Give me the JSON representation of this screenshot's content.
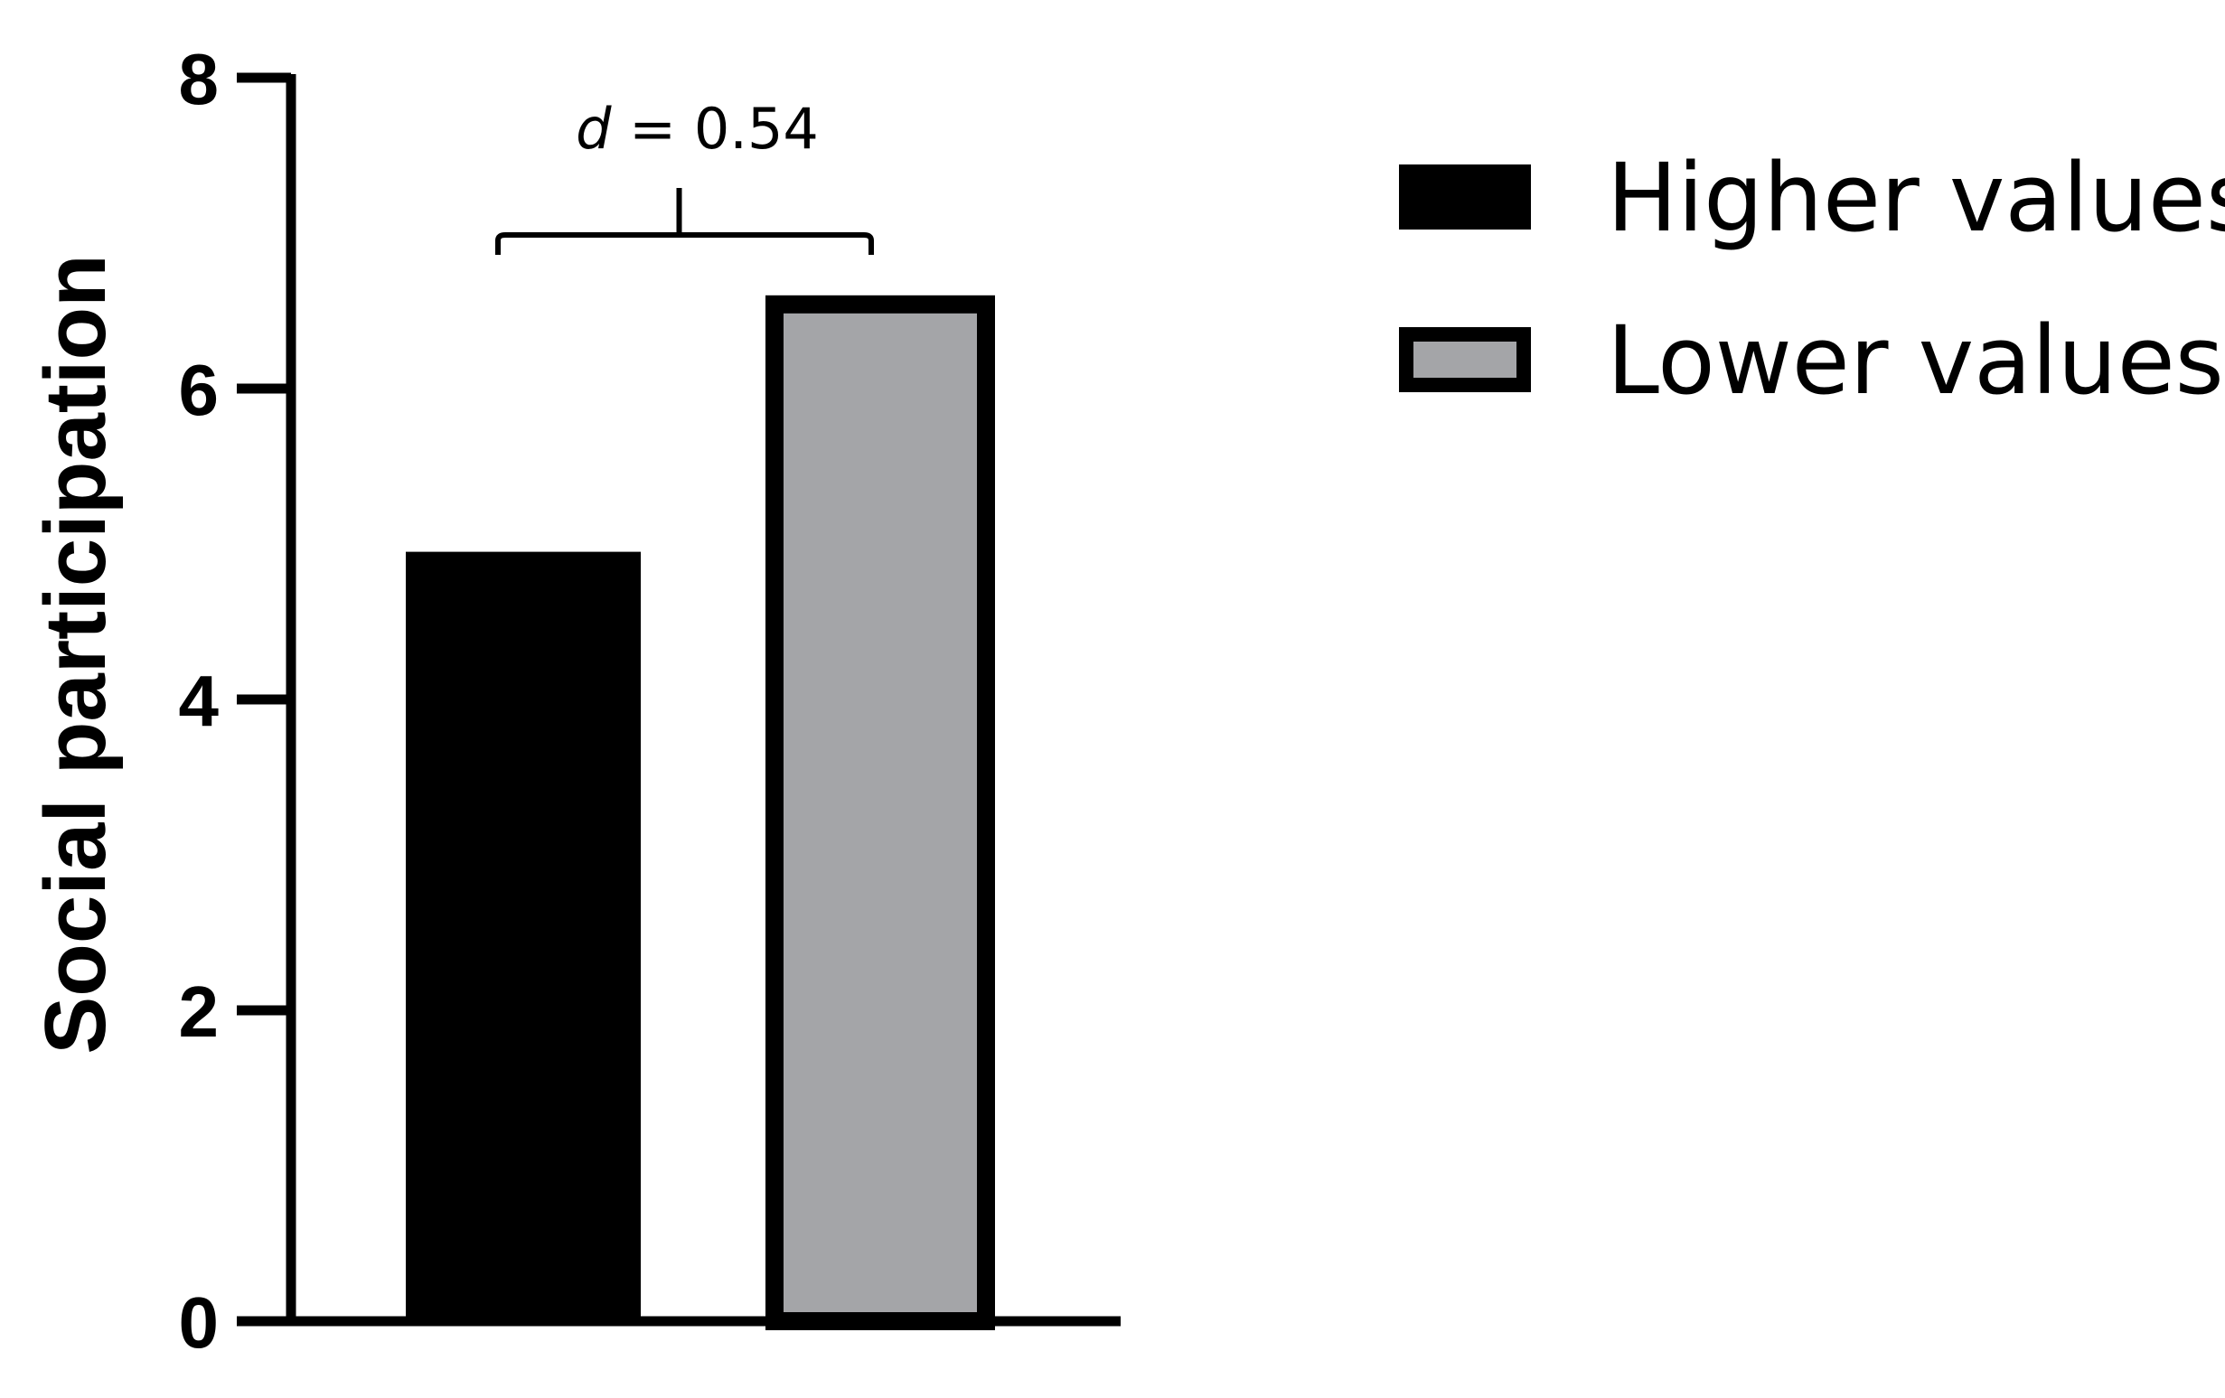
{
  "chart_data": {
    "type": "bar",
    "title": "",
    "xlabel": "",
    "ylabel": "Social participation",
    "ylim": [
      0,
      8
    ],
    "yticks": [
      0,
      2,
      4,
      6,
      8
    ],
    "grid": false,
    "legend_position": "top-right",
    "series": [
      {
        "name": "Higher values",
        "value": 4.95,
        "color": "#000000",
        "edge": "#000000"
      },
      {
        "name": "Lower values",
        "value": 6.6,
        "color": "#a4a5a8",
        "edge": "#000000"
      }
    ],
    "annotation": {
      "prefix": "d",
      "text": " = 0.54"
    }
  }
}
